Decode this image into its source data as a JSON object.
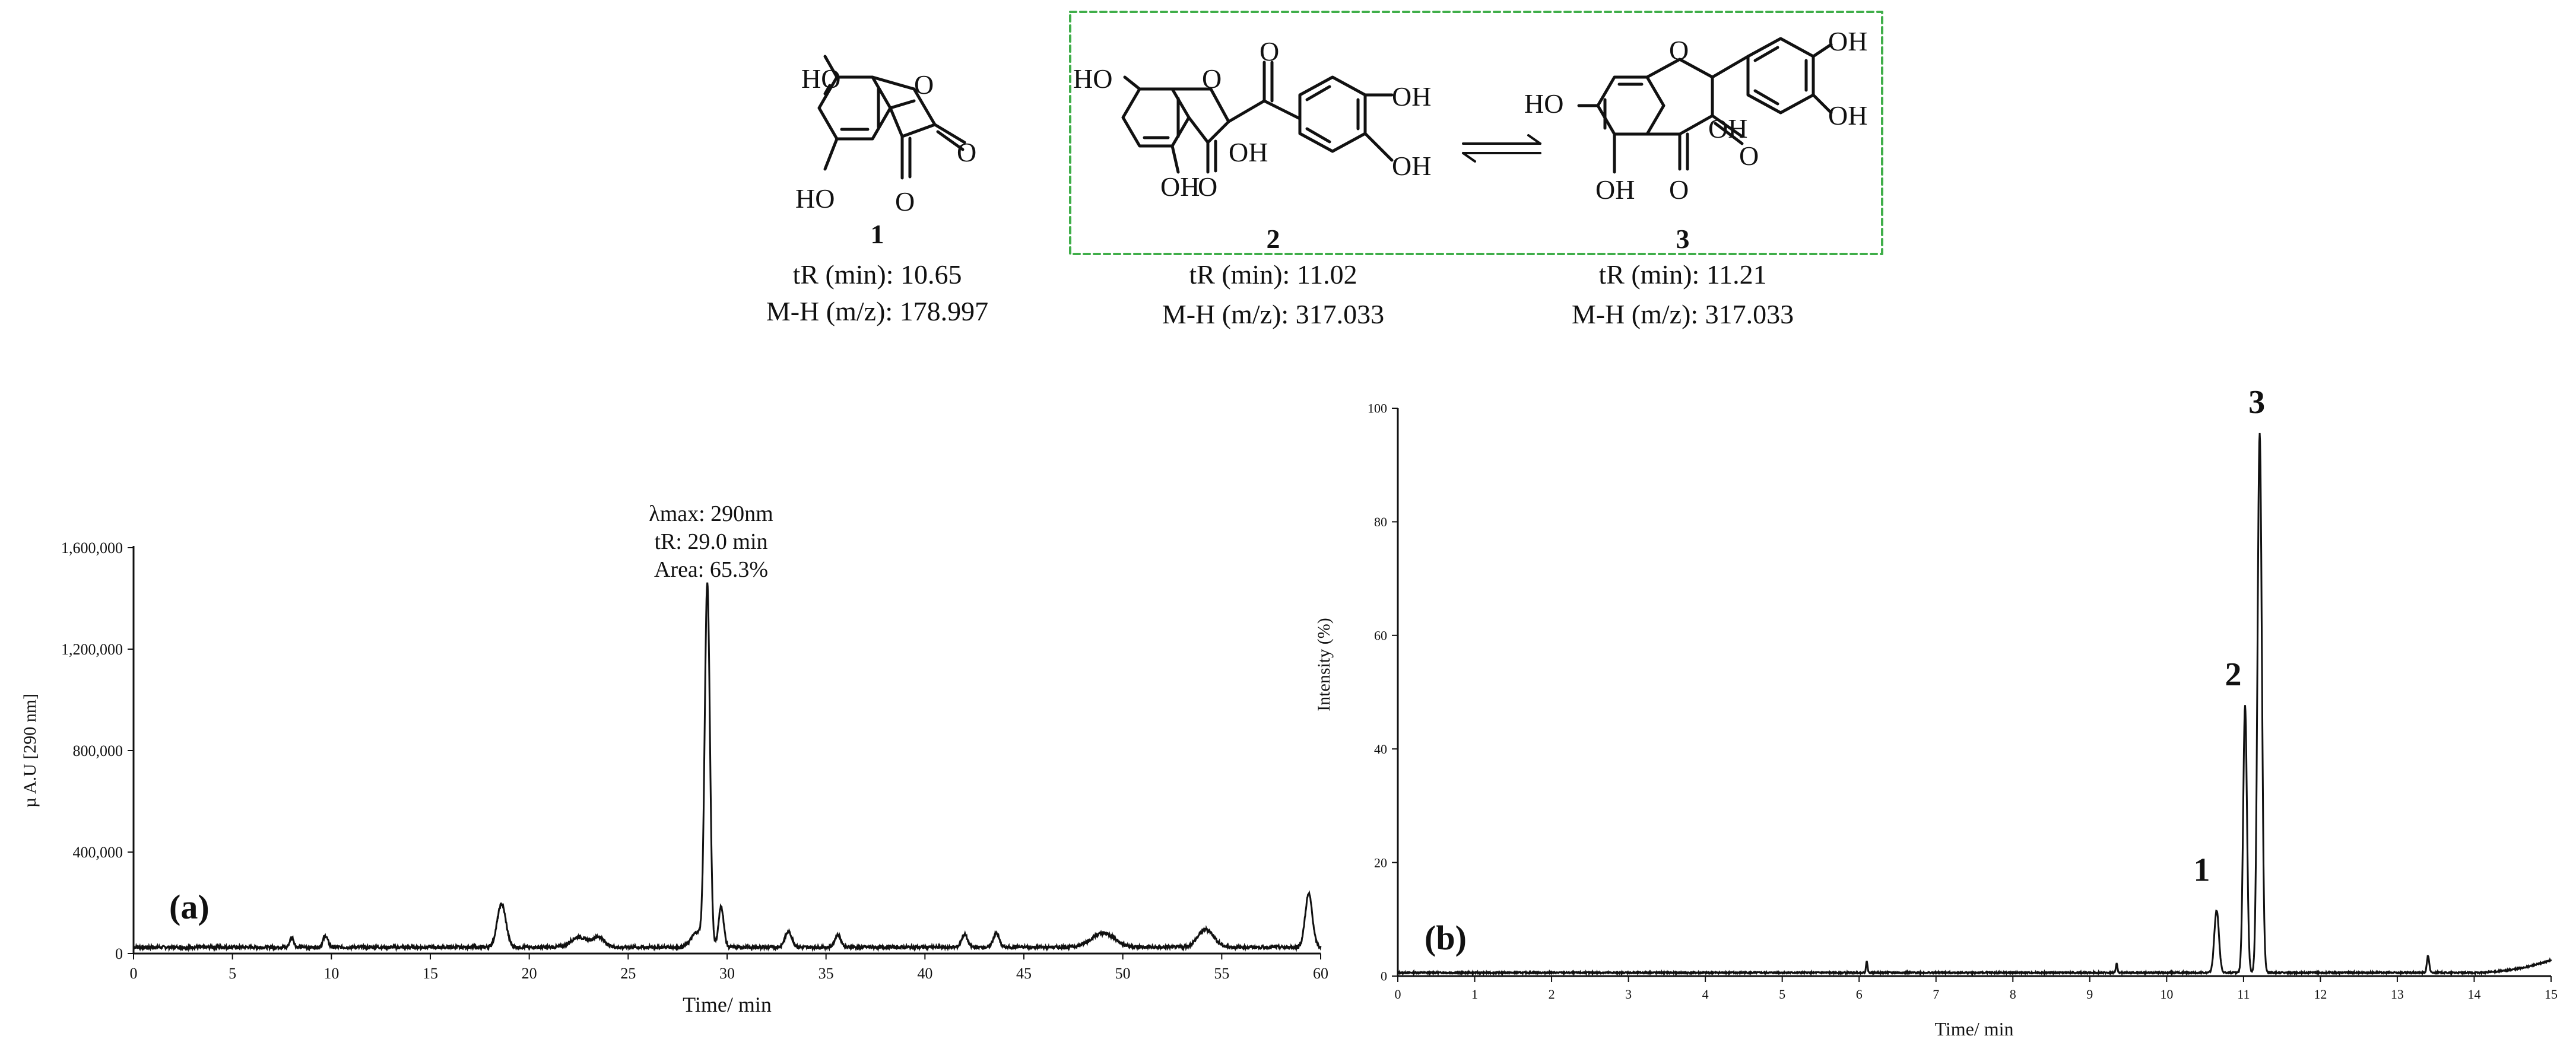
{
  "structures": [
    {
      "id": "1",
      "tr": "tR (min): 10.65",
      "mz": "M-H (m/z): 178.997"
    },
    {
      "id": "2",
      "tr": "tR (min): 11.02",
      "mz": "M-H (m/z): 317.033"
    },
    {
      "id": "3",
      "tr": "tR (min): 11.21",
      "mz": "M-H (m/z): 317.033"
    }
  ],
  "atom_labels": {
    "oh": "OH",
    "ho": "HO",
    "o": "O"
  },
  "colors": {
    "box": "#3fae49",
    "line": "#111111"
  },
  "chart_data": [
    {
      "type": "line",
      "panel_label": "(a)",
      "xlabel": "Time/ min",
      "ylabel": "µ A.U [290 nm]",
      "xlim": [
        0,
        60
      ],
      "ylim": [
        0,
        1600000
      ],
      "xticks": [
        0,
        5,
        10,
        15,
        20,
        25,
        30,
        35,
        40,
        45,
        50,
        55,
        60
      ],
      "yticks": [
        0,
        400000,
        800000,
        1200000,
        1600000
      ],
      "ytick_labels": [
        "0",
        "400,000",
        "800,000",
        "1,200,000",
        "1,600,000"
      ],
      "grid": false,
      "baseline": 25000,
      "peaks": [
        {
          "x": 18.6,
          "y": 170000,
          "w": 0.22
        },
        {
          "x": 29.0,
          "y": 1420000,
          "w": 0.13
        },
        {
          "x": 29.7,
          "y": 160000,
          "w": 0.13
        },
        {
          "x": 59.4,
          "y": 210000,
          "w": 0.18
        },
        {
          "x": 28.5,
          "y": 60000,
          "w": 0.3
        },
        {
          "x": 9.7,
          "y": 45000,
          "w": 0.12
        },
        {
          "x": 33.1,
          "y": 60000,
          "w": 0.18
        },
        {
          "x": 35.6,
          "y": 50000,
          "w": 0.15
        },
        {
          "x": 42.0,
          "y": 50000,
          "w": 0.15
        },
        {
          "x": 43.6,
          "y": 55000,
          "w": 0.15
        },
        {
          "x": 49.0,
          "y": 55000,
          "w": 0.6
        },
        {
          "x": 54.2,
          "y": 70000,
          "w": 0.4
        },
        {
          "x": 22.5,
          "y": 40000,
          "w": 0.4
        },
        {
          "x": 23.5,
          "y": 40000,
          "w": 0.3
        },
        {
          "x": 8.0,
          "y": 40000,
          "w": 0.1
        }
      ],
      "annotation": [
        "λmax: 290nm",
        "tR: 29.0 min",
        "Area: 65.3%"
      ]
    },
    {
      "type": "line",
      "panel_label": "(b)",
      "xlabel": "Time/ min",
      "ylabel": "Intensity (%)",
      "xlim": [
        0,
        15
      ],
      "ylim": [
        0,
        100
      ],
      "xticks": [
        0,
        1,
        2,
        3,
        4,
        5,
        6,
        7,
        8,
        9,
        10,
        11,
        12,
        13,
        14,
        15
      ],
      "yticks": [
        0,
        20,
        40,
        60,
        80,
        100
      ],
      "ytick_labels": [
        "0",
        "20",
        "40",
        "60",
        "80",
        "100"
      ],
      "grid": false,
      "baseline": 0.6,
      "peaks": [
        {
          "x": 10.65,
          "y": 11,
          "w": 0.03,
          "label": "1"
        },
        {
          "x": 11.02,
          "y": 47,
          "w": 0.025,
          "label": "2"
        },
        {
          "x": 11.21,
          "y": 95,
          "w": 0.028,
          "label": "3"
        },
        {
          "x": 6.1,
          "y": 2,
          "w": 0.01
        },
        {
          "x": 9.35,
          "y": 1.6,
          "w": 0.01
        },
        {
          "x": 13.4,
          "y": 3,
          "w": 0.015
        }
      ],
      "tail": {
        "from": 14.0,
        "to": 15,
        "y": 2.8
      }
    }
  ]
}
